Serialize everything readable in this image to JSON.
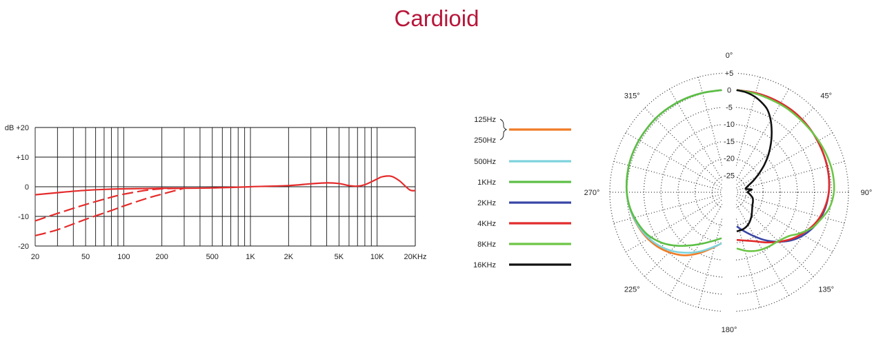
{
  "title": "Cardioid",
  "chart_data": [
    {
      "type": "line",
      "x_scale": "log",
      "x_ticks": [
        {
          "label": "20",
          "value": 20
        },
        {
          "label": "50",
          "value": 50
        },
        {
          "label": "100",
          "value": 100
        },
        {
          "label": "200",
          "value": 200
        },
        {
          "label": "500",
          "value": 500
        },
        {
          "label": "1K",
          "value": 1000
        },
        {
          "label": "2K",
          "value": 2000
        },
        {
          "label": "5K",
          "value": 5000
        },
        {
          "label": "10K",
          "value": 10000
        },
        {
          "label": "20KHz",
          "value": 20000
        }
      ],
      "y_ticks": [
        {
          "label": "dB +20",
          "value": 20
        },
        {
          "label": "+10",
          "value": 10
        },
        {
          "label": "0",
          "value": 0
        },
        {
          "label": "-10",
          "value": -10
        },
        {
          "label": "-20",
          "value": -20
        }
      ],
      "xlim": [
        20,
        20000
      ],
      "ylim": [
        -20,
        20
      ],
      "grid": true,
      "series": [
        {
          "style": "solid",
          "color": "#e52b2b",
          "x": [
            20,
            30,
            50,
            80,
            100,
            150,
            200,
            300,
            500,
            1000,
            2000,
            3000,
            4000,
            5000,
            6000,
            7000,
            8000,
            10000,
            11000,
            13000,
            15000,
            18000,
            20000
          ],
          "y": [
            -2.7,
            -2,
            -1.2,
            -0.8,
            -0.7,
            -0.6,
            -0.5,
            -0.5,
            -0.4,
            0,
            0.4,
            1,
            1.3,
            1.1,
            0.4,
            0.2,
            0.7,
            2.6,
            3.4,
            3.5,
            2,
            -1,
            -1.3
          ]
        },
        {
          "style": "dashed",
          "color": "#e52b2b",
          "x": [
            20,
            30,
            50,
            80,
            100,
            150,
            200,
            300
          ],
          "y": [
            -11.5,
            -9,
            -6,
            -3.5,
            -2.5,
            -1.2,
            -0.7,
            -0.5
          ]
        },
        {
          "style": "dashed",
          "color": "#e52b2b",
          "x": [
            20,
            30,
            50,
            80,
            100,
            150,
            200,
            300
          ],
          "y": [
            -16.5,
            -14.5,
            -11,
            -8,
            -6.5,
            -4,
            -2.5,
            -0.5
          ]
        }
      ]
    },
    {
      "type": "polar",
      "angle_labels": [
        {
          "label": "0°",
          "angle": 0
        },
        {
          "label": "45°",
          "angle": 45
        },
        {
          "label": "90°",
          "angle": 90
        },
        {
          "label": "135°",
          "angle": 135
        },
        {
          "label": "180°",
          "angle": 180
        },
        {
          "label": "225°",
          "angle": 225
        },
        {
          "label": "270°",
          "angle": 270
        },
        {
          "label": "315°",
          "angle": 315
        }
      ],
      "radial_labels": [
        "+5",
        "0",
        "-5",
        "-10",
        "-15",
        "-20",
        "-25"
      ],
      "radial_values": [
        5,
        0,
        -5,
        -10,
        -15,
        -20,
        -25
      ],
      "r_range": [
        -30,
        5
      ],
      "legend": [
        {
          "label": "125Hz",
          "label2": "250Hz",
          "color": "#f07a25"
        },
        {
          "label": "500Hz",
          "color": "#7ed3dd"
        },
        {
          "label": "1KHz",
          "color": "#5cbf45"
        },
        {
          "label": "2KHz",
          "color": "#3846a6"
        },
        {
          "label": "4KHz",
          "color": "#e22b2b"
        },
        {
          "label": "8KHz",
          "color": "#6cc545"
        },
        {
          "label": "16KHz",
          "color": "#111111"
        }
      ],
      "series": [
        {
          "legend_index": 0,
          "side": "left",
          "angles": [
            0,
            10,
            20,
            30,
            40,
            50,
            60,
            70,
            80,
            90,
            100,
            110,
            120,
            130,
            140,
            150,
            160,
            170,
            180
          ],
          "db": [
            0,
            -0.3,
            -0.5,
            -0.7,
            -0.9,
            -1.2,
            -1.4,
            -1.6,
            -1.9,
            -2.2,
            -2.7,
            -3.4,
            -4.2,
            -5.3,
            -6.8,
            -8.6,
            -11,
            -13.3,
            -15
          ]
        },
        {
          "legend_index": 1,
          "side": "left",
          "angles": [
            0,
            10,
            20,
            30,
            40,
            50,
            60,
            70,
            80,
            90,
            100,
            110,
            120,
            130,
            140,
            150,
            160,
            170,
            180
          ],
          "db": [
            0,
            -0.3,
            -0.5,
            -0.7,
            -0.9,
            -1.2,
            -1.4,
            -1.6,
            -1.9,
            -2.2,
            -2.7,
            -3.5,
            -4.5,
            -5.8,
            -7.5,
            -9.5,
            -11.5,
            -13.5,
            -15
          ]
        },
        {
          "legend_index": 2,
          "side": "left",
          "angles": [
            0,
            10,
            20,
            30,
            40,
            50,
            60,
            70,
            80,
            90,
            100,
            110,
            120,
            130,
            140,
            150,
            160,
            170,
            180
          ],
          "db": [
            0,
            -0.3,
            -0.5,
            -0.7,
            -0.9,
            -1.2,
            -1.4,
            -1.6,
            -1.9,
            -2.2,
            -2.8,
            -3.8,
            -5,
            -7,
            -9.5,
            -12,
            -14,
            -15.5,
            -16.5
          ]
        },
        {
          "legend_index": 3,
          "side": "right",
          "angles": [
            0,
            10,
            20,
            30,
            40,
            50,
            60,
            70,
            80,
            90,
            100,
            110,
            120,
            130,
            140,
            150,
            160,
            170,
            180
          ],
          "db": [
            0,
            -0.3,
            -0.6,
            -0.9,
            -1.2,
            -1.6,
            -2,
            -2.3,
            -2.6,
            -3,
            -3.6,
            -4.6,
            -6.2,
            -8.3,
            -11,
            -13.8,
            -16.5,
            -18.5,
            -20
          ]
        },
        {
          "legend_index": 4,
          "side": "right",
          "angles": [
            0,
            10,
            20,
            30,
            40,
            50,
            60,
            70,
            80,
            90,
            100,
            110,
            120,
            130,
            140,
            150,
            160,
            170,
            180
          ],
          "db": [
            0,
            -0.3,
            -0.6,
            -0.9,
            -1.2,
            -1.6,
            -2,
            -2.3,
            -2.6,
            -3,
            -3.8,
            -5,
            -6.8,
            -8.8,
            -11,
            -13,
            -14.7,
            -15.6,
            -16
          ]
        },
        {
          "legend_index": 5,
          "side": "right",
          "angles": [
            0,
            10,
            20,
            30,
            40,
            50,
            60,
            70,
            80,
            90,
            100,
            110,
            115,
            120,
            125,
            130,
            140,
            150,
            160,
            170,
            180
          ],
          "db": [
            0,
            -0.5,
            -1,
            -1.3,
            -1.6,
            -1.7,
            -1.6,
            -1.4,
            -1.3,
            -1.5,
            -2.5,
            -4.5,
            -5.5,
            -7,
            -8.5,
            -10,
            -11.2,
            -11.5,
            -11.8,
            -12.5,
            -13.5
          ]
        },
        {
          "legend_index": 6,
          "side": "right",
          "angles": [
            0,
            5,
            10,
            15,
            20,
            25,
            30,
            35,
            40,
            45,
            50,
            55,
            60,
            65,
            70,
            75,
            80,
            85,
            90,
            95,
            100,
            105,
            110,
            120,
            130,
            140,
            150,
            160,
            170,
            180
          ],
          "db": [
            0,
            -0.5,
            -1.3,
            -2.5,
            -4,
            -6.5,
            -9.5,
            -12.5,
            -15.5,
            -18.5,
            -21.5,
            -24,
            -26,
            -27,
            -27.2,
            -26.5,
            -25.5,
            -26.5,
            -26.8,
            -26.4,
            -26,
            -25.5,
            -25,
            -24.5,
            -24,
            -23,
            -21.5,
            -20,
            -19,
            -18.5
          ]
        }
      ]
    }
  ]
}
